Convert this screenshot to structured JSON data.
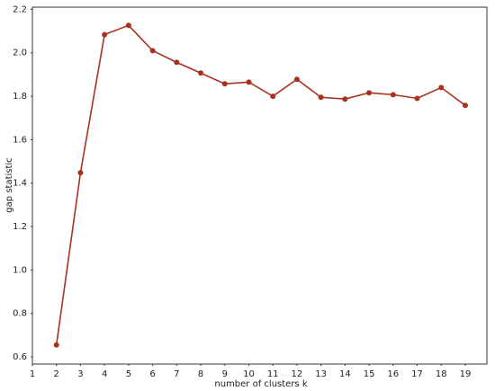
{
  "chart_data": {
    "type": "line",
    "x_label": "number of clusters k",
    "y_label": "gap statistic",
    "series": [
      {
        "color": "#a8321e",
        "x": [
          2,
          3,
          4,
          5,
          6,
          7,
          8,
          9,
          10,
          11,
          12,
          13,
          14,
          15,
          16,
          17,
          18,
          19
        ],
        "values": [
          0.655,
          1.448,
          2.084,
          2.126,
          2.01,
          1.956,
          1.907,
          1.857,
          1.865,
          1.8,
          1.878,
          1.795,
          1.787,
          1.816,
          1.807,
          1.79,
          1.84,
          1.758
        ]
      }
    ],
    "xlim": [
      1,
      19.9
    ],
    "xticks": [
      1,
      2,
      3,
      4,
      5,
      6,
      7,
      8,
      9,
      10,
      11,
      12,
      13,
      14,
      15,
      16,
      17,
      18,
      19
    ],
    "ylim": [
      0.567,
      2.21
    ],
    "yticks": [
      0.6,
      0.8,
      {
        "value": 1.0,
        "label": "1.0"
      },
      1.2,
      1.4,
      1.6,
      1.8,
      {
        "value": 2.0,
        "label": "2.0"
      },
      2.2
    ],
    "grid": false
  }
}
